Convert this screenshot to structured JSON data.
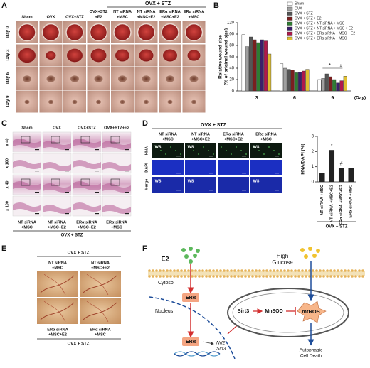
{
  "panel_a": {
    "label": "A",
    "group": "OVX + STZ",
    "columns": [
      [
        "Sham"
      ],
      [
        "OVX"
      ],
      [
        "OVX+STZ"
      ],
      [
        "OVX+STZ",
        "+E2"
      ],
      [
        "NT siRNA",
        "+MSC"
      ],
      [
        "NT siRNA",
        "+MSC+E2"
      ],
      [
        "ERα siRNA",
        "+MSC+E2"
      ],
      [
        "ERα siRNA",
        "+MSC"
      ]
    ],
    "rows": [
      "Day 0",
      "Day 3",
      "Day 6",
      "Day 9"
    ]
  },
  "panel_b": {
    "label": "B"
  },
  "panel_c": {
    "label": "C",
    "top_columns": [
      "Sham",
      "OVX",
      "OVX+STZ",
      "OVX+STZ+E2"
    ],
    "bottom_columns": [
      [
        "NT siRNA",
        "+MSC"
      ],
      [
        "NT siRNA",
        "+MSC+E2"
      ],
      [
        "ERα siRNA",
        "+MSC+E2"
      ],
      [
        "ERα siRNA",
        "+MSC"
      ]
    ],
    "group": "OVX + STZ",
    "rows": [
      "x 40",
      "x 100",
      "x 40",
      "x 100"
    ]
  },
  "panel_d": {
    "label": "D",
    "group": "OVX + STZ",
    "columns": [
      [
        "NT siRNA",
        "+MSC"
      ],
      [
        "NT siRNA",
        "+MSC+E2"
      ],
      [
        "ERα siRNA",
        "+MSC+E2"
      ],
      [
        "ERα siRNA",
        "+MSC"
      ]
    ],
    "rows": [
      "HNA",
      "DAPI",
      "Merge"
    ],
    "tag": "WS"
  },
  "panel_e": {
    "label": "E",
    "group": "OVX + STZ",
    "top_columns": [
      [
        "NT siRNA",
        "+MSC"
      ],
      [
        "NT siRNA",
        "+MSC+E2"
      ]
    ],
    "bottom_columns": [
      [
        "ERα siRNA",
        "+MSC+E2"
      ],
      [
        "ERα siRNA",
        "+MSC"
      ]
    ]
  },
  "panel_f": {
    "label": "F",
    "ligand": "E2",
    "glucose": [
      "High",
      "Glucose"
    ],
    "cytosol": "Cytosol",
    "nucleus": "Nucleus",
    "receptor": "ERα",
    "genes": [
      "Nrf2",
      "Sirt3"
    ],
    "sirt3": "Sirt3",
    "mnsod": "MnSOD",
    "mtros": "mtROS",
    "outcome": [
      "Autophagic",
      "Cell Death"
    ]
  },
  "chart_data": [
    {
      "type": "bar",
      "ylabel": [
        "Relative wound size",
        "(% of original wound size)"
      ],
      "xlabel": "(Day)",
      "categories": [
        "3",
        "6",
        "9"
      ],
      "series": [
        {
          "name": "Sham",
          "color": "#ffffff",
          "values": [
            99,
            48,
            20
          ]
        },
        {
          "name": "OVX",
          "color": "#a0a0a0",
          "values": [
            78,
            40,
            22
          ]
        },
        {
          "name": "OVX + STZ",
          "color": "#555555",
          "values": [
            95,
            38,
            30
          ]
        },
        {
          "name": "OVX + STZ + E2",
          "color": "#7a1f1f",
          "values": [
            90,
            37,
            25
          ]
        },
        {
          "name": "OVX + STZ + NT siRNA + MSC",
          "color": "#2e7d32",
          "values": [
            85,
            32,
            20
          ]
        },
        {
          "name": "OVX + STZ + NT siRNA + MSC + E2",
          "color": "#3b1f6b",
          "values": [
            90,
            33,
            14
          ]
        },
        {
          "name": "OVX + STZ + ERα siRNA + MSC + E2",
          "color": "#b0194b",
          "values": [
            88,
            35,
            18
          ]
        },
        {
          "name": "OVX + STZ + ERα siRNA + MSC",
          "color": "#e0c030",
          "values": [
            65,
            38,
            26
          ]
        }
      ],
      "ylim": [
        0,
        120
      ],
      "yticks": [
        0,
        20,
        40,
        60,
        80,
        100,
        120
      ],
      "grid": false,
      "legend": "top-right",
      "annotations": [
        "*",
        "#"
      ]
    },
    {
      "type": "bar",
      "ylabel": "HNA/DAPI (%)",
      "xlabel": "OVX + STZ",
      "categories": [
        "NT siRNA +MSC",
        "NT siRNA +MSC+E2",
        "ERα siRNA +MSC+E2",
        "ERα siRNA +MSC"
      ],
      "values": [
        0.6,
        2.1,
        0.9,
        0.9
      ],
      "color": "#222222",
      "ylim": [
        0,
        3
      ],
      "yticks": [
        0,
        1,
        2,
        3
      ],
      "grid": false,
      "annotations": [
        "*",
        "#"
      ]
    }
  ]
}
